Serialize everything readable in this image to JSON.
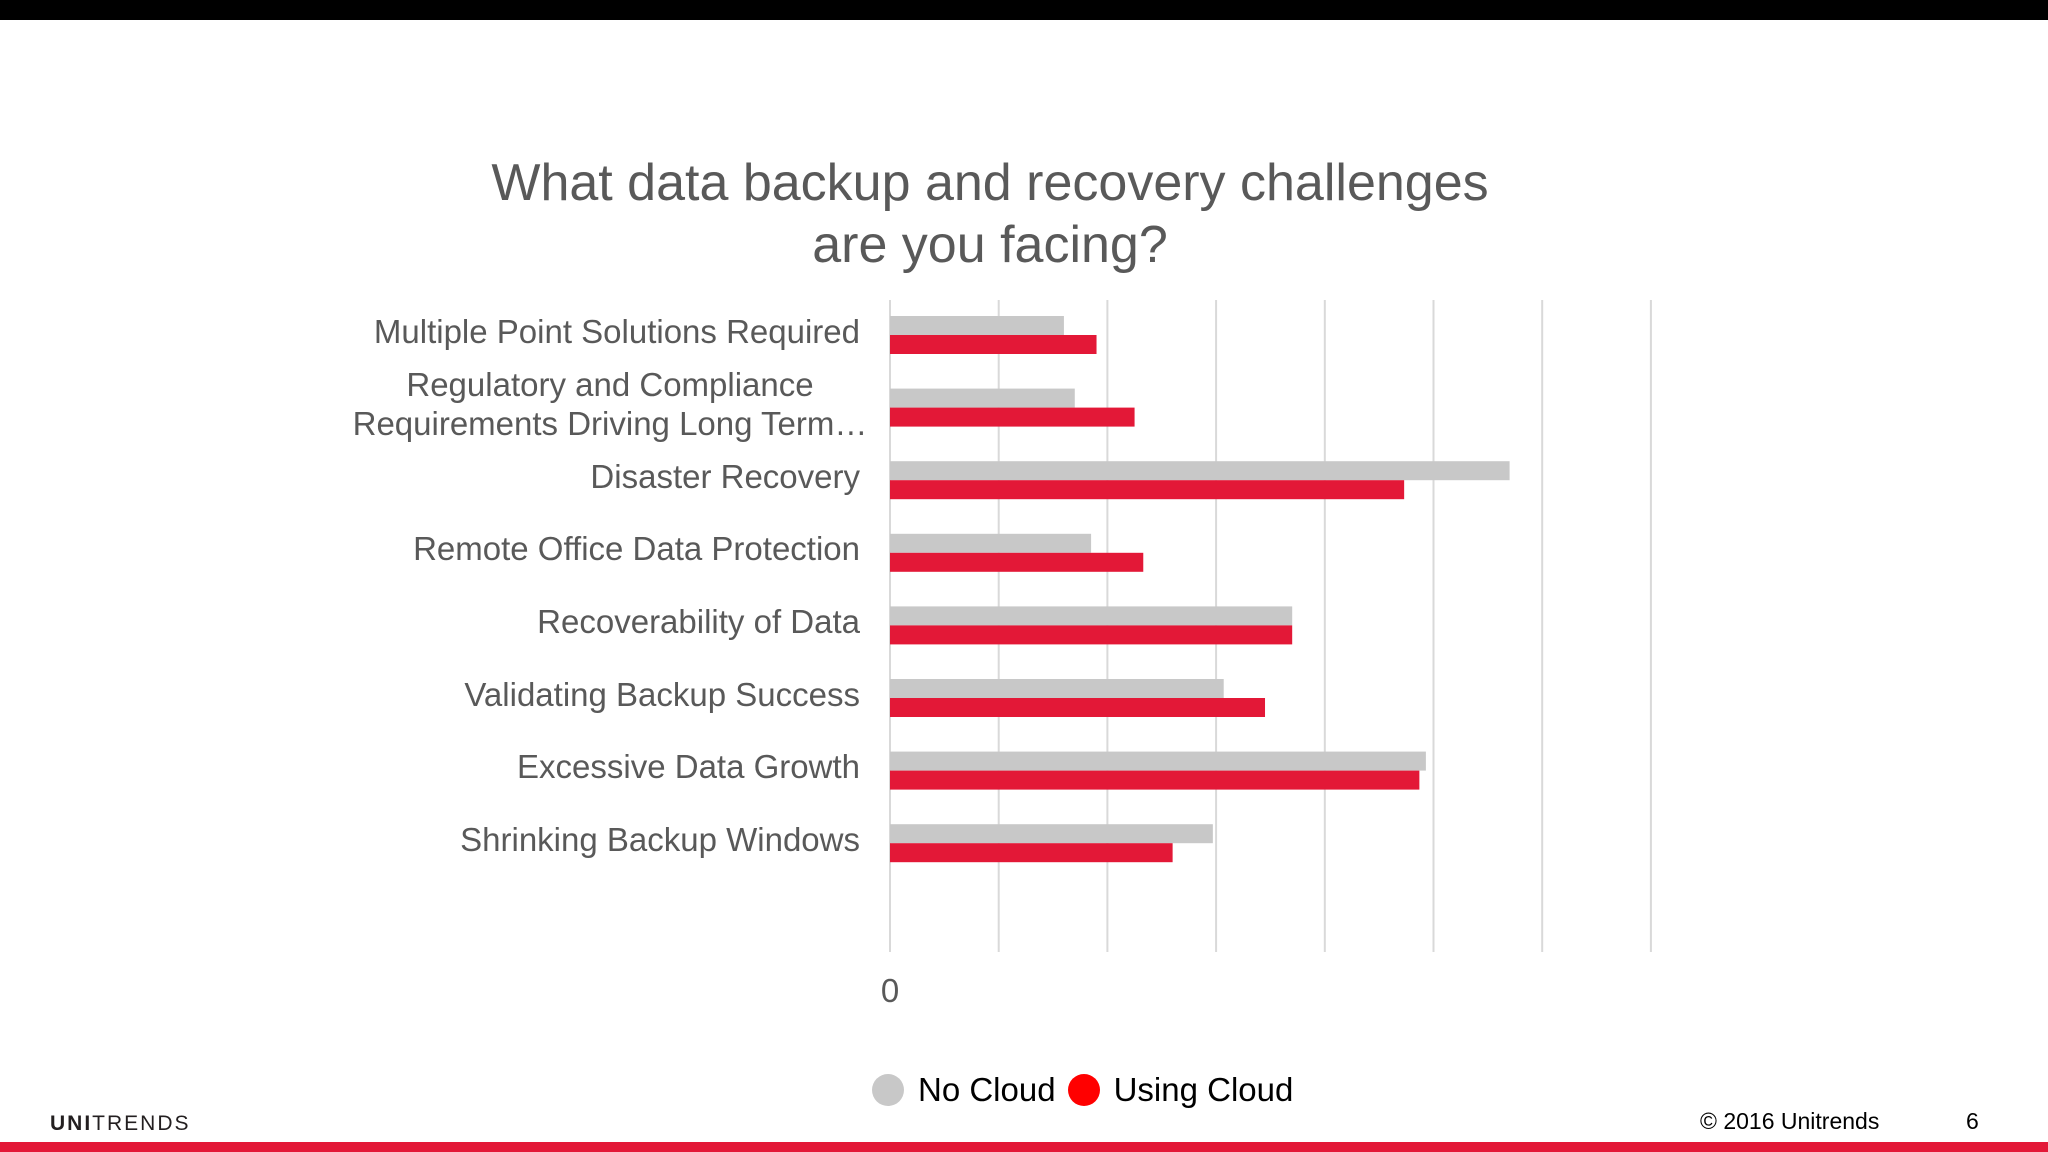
{
  "slide": {
    "brand": "UNITRENDS",
    "brand_bold": "UNI",
    "brand_light": "TRENDS",
    "copyright": "© 2016 Unitrends",
    "page_number": "6",
    "accent_color": "#e31837",
    "top_bar_color": "#000000"
  },
  "chart_data": {
    "type": "bar",
    "orientation": "horizontal",
    "title_lines": [
      "What data backup and recovery challenges",
      "are you facing?"
    ],
    "categories": [
      [
        "Multiple Point Solutions Required"
      ],
      [
        "Regulatory and Compliance",
        "Requirements Driving Long Term…"
      ],
      [
        "Disaster Recovery"
      ],
      [
        "Remote Office Data Protection"
      ],
      [
        "Recoverability of Data"
      ],
      [
        "Validating Backup Success"
      ],
      [
        "Excessive Data Growth"
      ],
      [
        "Shrinking Backup Windows"
      ]
    ],
    "series": [
      {
        "name": "No Cloud",
        "color": "#c8c8c8",
        "values": [
          1.6,
          1.7,
          5.7,
          1.85,
          3.7,
          3.07,
          4.93,
          2.97
        ]
      },
      {
        "name": "Using Cloud",
        "color": "#e31837",
        "values": [
          1.9,
          2.25,
          4.73,
          2.33,
          3.7,
          3.45,
          4.87,
          2.6
        ]
      }
    ],
    "xlim": [
      0,
      7
    ],
    "x_ticks_shown": [
      "0"
    ],
    "gridlines": true,
    "legend_position": "bottom",
    "legend_colors": [
      "#c8c8c8",
      "#ff0000"
    ]
  }
}
